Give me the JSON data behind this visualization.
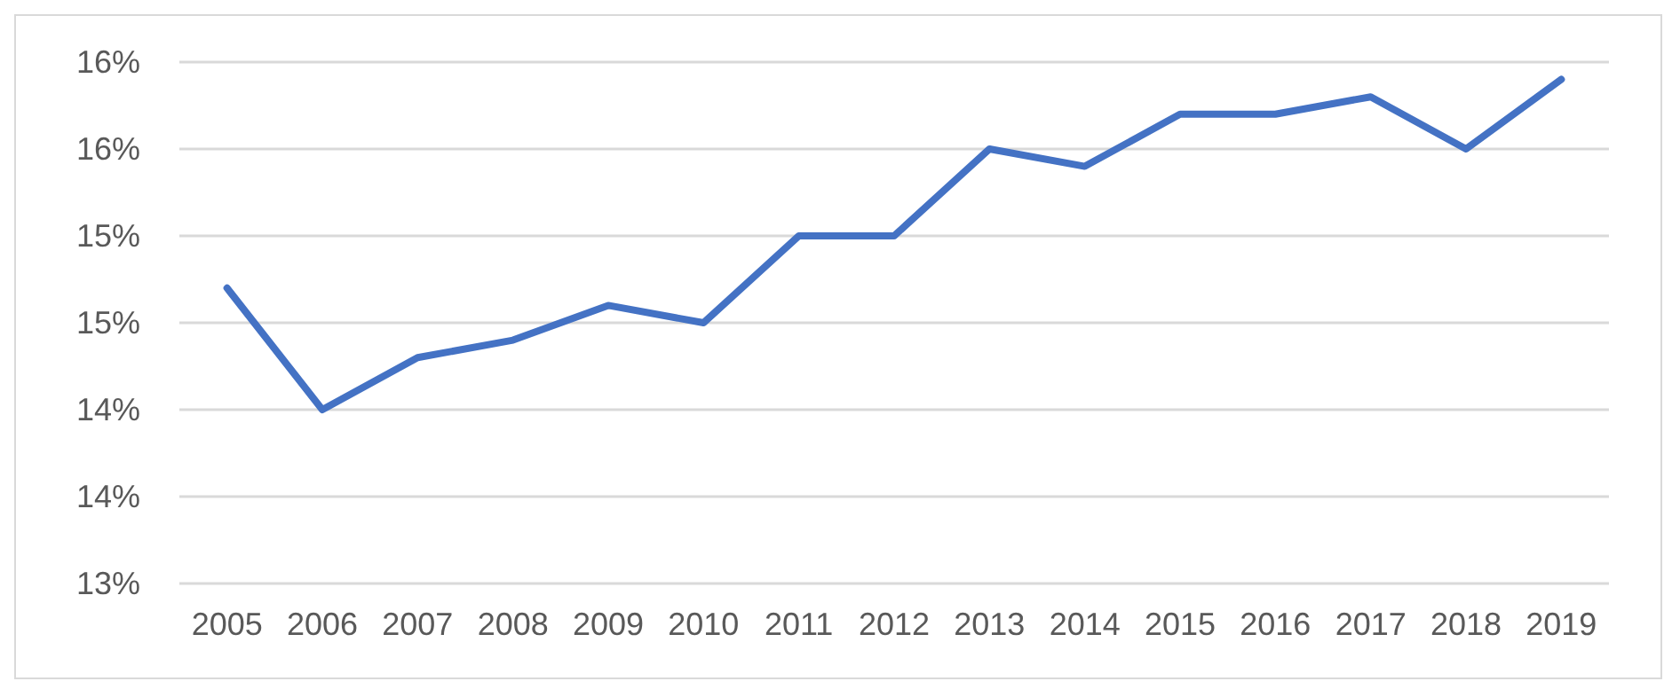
{
  "chart_data": {
    "type": "line",
    "categories": [
      "2005",
      "2006",
      "2007",
      "2008",
      "2009",
      "2010",
      "2011",
      "2012",
      "2013",
      "2014",
      "2015",
      "2016",
      "2017",
      "2018",
      "2019"
    ],
    "series": [
      {
        "color": "#4472c4",
        "values": [
          14.7,
          14.0,
          14.3,
          14.4,
          14.6,
          14.5,
          15.0,
          15.0,
          15.5,
          15.4,
          15.7,
          15.7,
          15.8,
          15.5,
          15.9
        ]
      }
    ],
    "ylim": [
      13,
      16
    ],
    "yticks": [
      {
        "value": 13,
        "label": "13%"
      },
      {
        "value": 13.5,
        "label": "14%"
      },
      {
        "value": 14,
        "label": "14%"
      },
      {
        "value": 14.5,
        "label": "15%"
      },
      {
        "value": 15,
        "label": "15%"
      },
      {
        "value": 15.5,
        "label": "16%"
      },
      {
        "value": 16,
        "label": "16%"
      }
    ],
    "grid": "y",
    "marker": "none",
    "line_style": "solid"
  }
}
